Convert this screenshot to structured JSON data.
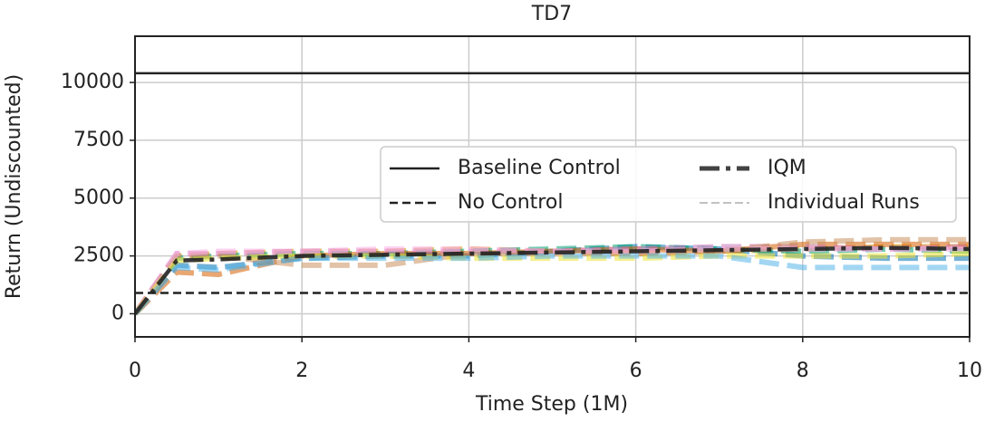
{
  "chart_data": {
    "type": "line",
    "title": "TD7",
    "xlabel": "Time Step (1M)",
    "ylabel": "Return (Undiscounted)",
    "x": [
      0,
      0.5,
      1,
      2,
      3,
      4,
      5,
      6,
      7,
      8,
      9,
      10
    ],
    "xlim": [
      0,
      10
    ],
    "xticks": [
      0,
      2,
      4,
      6,
      8,
      10
    ],
    "ylim": [
      -1000,
      12000
    ],
    "yticks": [
      0,
      2500,
      5000,
      7500,
      10000
    ],
    "grid": true,
    "legend": "center right",
    "hlines": [
      {
        "name": "Baseline Control",
        "value": 10400,
        "color": "#222222",
        "dash": "solid"
      },
      {
        "name": "No Control",
        "value": 900,
        "color": "#222222",
        "dash": "dashed"
      }
    ],
    "series": [
      {
        "name": "IQM",
        "color": "#222222",
        "values": [
          0,
          2300,
          2350,
          2500,
          2550,
          2600,
          2650,
          2700,
          2750,
          2800,
          2850,
          2800
        ]
      }
    ],
    "runs": {
      "name": "Individual Runs",
      "lines": [
        {
          "color": "#0173b2",
          "values": [
            0,
            2100,
            2000,
            2400,
            2500,
            2500,
            2700,
            2900,
            2800,
            2500,
            2400,
            2400
          ]
        },
        {
          "color": "#de8f05",
          "values": [
            0,
            2500,
            2600,
            2700,
            2700,
            2800,
            2700,
            2600,
            2700,
            2800,
            2900,
            2900
          ]
        },
        {
          "color": "#029e73",
          "values": [
            0,
            2400,
            2500,
            2600,
            2600,
            2700,
            2800,
            2900,
            2800,
            2700,
            2800,
            2700
          ]
        },
        {
          "color": "#d55e00",
          "values": [
            0,
            1800,
            1700,
            2500,
            2600,
            2600,
            2700,
            2800,
            2700,
            3000,
            3000,
            3000
          ]
        },
        {
          "color": "#cc78bc",
          "values": [
            0,
            2600,
            2600,
            2700,
            2700,
            2700,
            2700,
            2800,
            2900,
            2900,
            2800,
            2900
          ]
        },
        {
          "color": "#ca9161",
          "values": [
            0,
            2500,
            2500,
            2100,
            2100,
            2600,
            2600,
            2600,
            2700,
            3100,
            3200,
            3200
          ]
        },
        {
          "color": "#fbafe4",
          "values": [
            0,
            2600,
            2700,
            2700,
            2800,
            2800,
            2700,
            2700,
            2800,
            2800,
            2800,
            2800
          ]
        },
        {
          "color": "#ece133",
          "values": [
            0,
            2300,
            2400,
            2500,
            2500,
            2400,
            2400,
            2400,
            2500,
            2500,
            2500,
            2600
          ]
        },
        {
          "color": "#56b4e9",
          "values": [
            0,
            2000,
            1900,
            2400,
            2400,
            2400,
            2500,
            2500,
            2500,
            2000,
            2000,
            2000
          ]
        }
      ]
    }
  }
}
